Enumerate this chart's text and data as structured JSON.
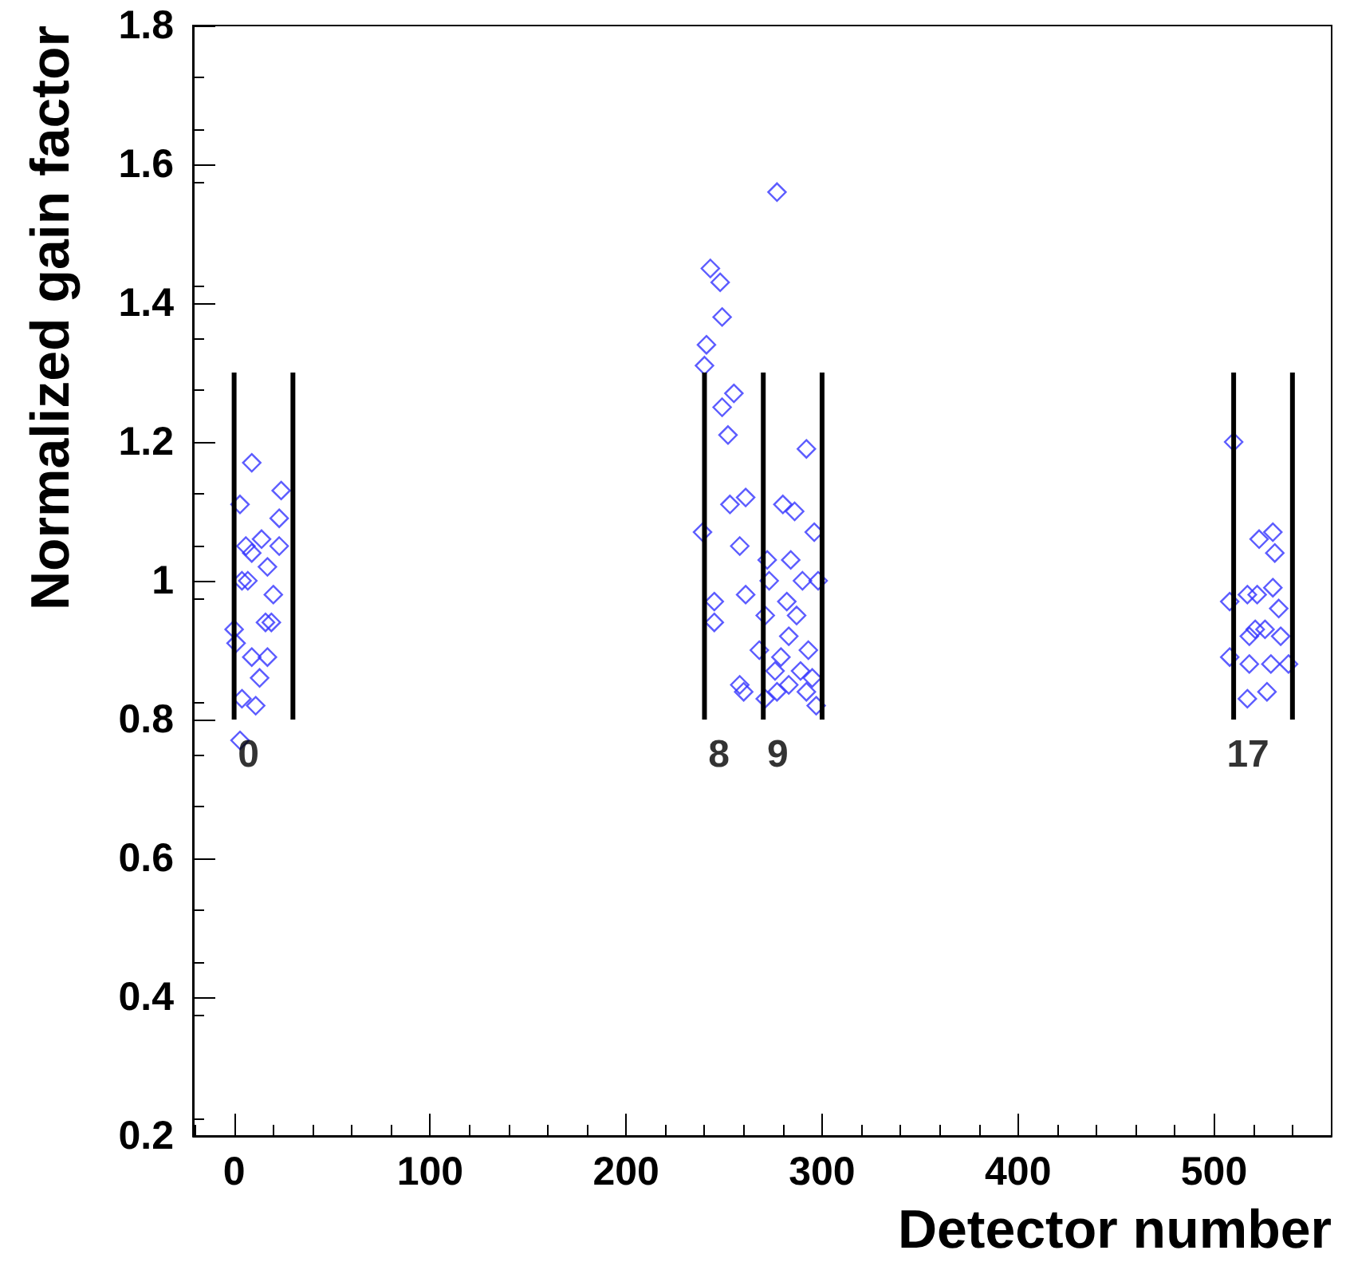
{
  "chart_data": {
    "type": "scatter",
    "xlabel": "Detector number",
    "ylabel": "Normalized gain factor",
    "xlim": [
      -21,
      560
    ],
    "ylim": [
      0.2,
      1.8
    ],
    "xticks": [
      0,
      100,
      200,
      300,
      400,
      500
    ],
    "yticks": [
      0.2,
      0.4,
      0.6,
      0.8,
      1,
      1.2,
      1.4,
      1.6,
      1.8
    ],
    "grid": false,
    "series": [
      {
        "color": "#3333ff",
        "marker": "diamond",
        "x": [
          9,
          3,
          24,
          23,
          6,
          14,
          9,
          23,
          17,
          4,
          7,
          20,
          16,
          19,
          0,
          1,
          9,
          17,
          13,
          4,
          11,
          3,
          277,
          243,
          248,
          249,
          241,
          240,
          255,
          249,
          252,
          292,
          253,
          261,
          280,
          286,
          239,
          296,
          258,
          272,
          284,
          273,
          290,
          298,
          261,
          282,
          245,
          271,
          287,
          245,
          283,
          268,
          293,
          279,
          276,
          289,
          283,
          295,
          258,
          260,
          277,
          271,
          292,
          297,
          510,
          523,
          530,
          531,
          508,
          517,
          522,
          530,
          533,
          521,
          526,
          518,
          534,
          508,
          518,
          529,
          538,
          517,
          527
        ],
        "values": [
          1.17,
          1.11,
          1.13,
          1.09,
          1.05,
          1.06,
          1.04,
          1.05,
          1.02,
          1.0,
          1.0,
          0.98,
          0.94,
          0.94,
          0.93,
          0.91,
          0.89,
          0.89,
          0.86,
          0.83,
          0.82,
          0.77,
          1.56,
          1.45,
          1.43,
          1.38,
          1.34,
          1.31,
          1.27,
          1.25,
          1.21,
          1.19,
          1.11,
          1.12,
          1.11,
          1.1,
          1.07,
          1.07,
          1.05,
          1.03,
          1.03,
          1.0,
          1.0,
          1.0,
          0.98,
          0.97,
          0.97,
          0.95,
          0.95,
          0.94,
          0.92,
          0.9,
          0.9,
          0.89,
          0.87,
          0.87,
          0.85,
          0.86,
          0.85,
          0.84,
          0.84,
          0.83,
          0.84,
          0.82,
          1.2,
          1.06,
          1.07,
          1.04,
          0.97,
          0.98,
          0.98,
          0.99,
          0.96,
          0.93,
          0.93,
          0.92,
          0.92,
          0.89,
          0.88,
          0.88,
          0.88,
          0.83,
          0.84
        ]
      },
      {
        "type": "line",
        "color": "#000000",
        "marker": "none",
        "x": [
          0,
          0
        ],
        "values": [
          0.8,
          1.3
        ]
      },
      {
        "type": "line",
        "color": "#000000",
        "marker": "none",
        "x": [
          30,
          30
        ],
        "values": [
          0.8,
          1.3
        ]
      },
      {
        "type": "line",
        "color": "#000000",
        "marker": "none",
        "x": [
          240,
          240
        ],
        "values": [
          0.8,
          1.3
        ]
      },
      {
        "type": "line",
        "color": "#000000",
        "marker": "none",
        "x": [
          270,
          270
        ],
        "values": [
          0.8,
          1.3
        ]
      },
      {
        "type": "line",
        "color": "#000000",
        "marker": "none",
        "x": [
          300,
          300
        ],
        "values": [
          0.8,
          1.3
        ]
      },
      {
        "type": "line",
        "color": "#000000",
        "marker": "none",
        "x": [
          510,
          510
        ],
        "values": [
          0.8,
          1.3
        ]
      },
      {
        "type": "line",
        "color": "#000000",
        "marker": "none",
        "x": [
          540,
          540
        ],
        "values": [
          0.8,
          1.3
        ]
      }
    ],
    "annotations": [
      {
        "text": "0",
        "x": 0,
        "y": 0.8
      },
      {
        "text": "8",
        "x": 240,
        "y": 0.8
      },
      {
        "text": "9",
        "x": 270,
        "y": 0.8
      },
      {
        "text": "17",
        "x": 510,
        "y": 0.8
      }
    ]
  }
}
